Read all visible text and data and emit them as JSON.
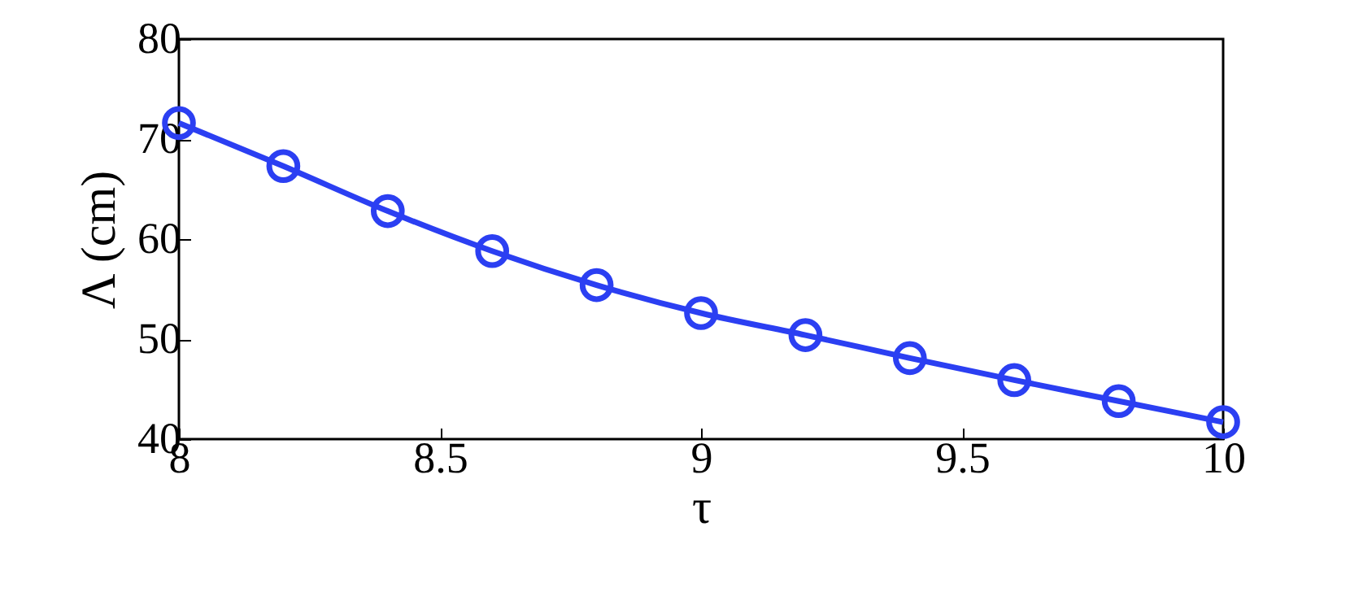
{
  "chart_data": {
    "type": "line",
    "xlabel": "τ",
    "ylabel": "Λ (cm)",
    "x": [
      8,
      8.2,
      8.4,
      8.6,
      8.8,
      9,
      9.2,
      9.4,
      9.6,
      9.8,
      10
    ],
    "series": [
      {
        "color": "#2b3ff2",
        "values": [
          71.6,
          67.3,
          62.8,
          58.8,
          55.4,
          52.6,
          50.4,
          48.1,
          45.9,
          43.8,
          41.7
        ]
      }
    ],
    "xlim": [
      8,
      10
    ],
    "xticks": [
      8,
      8.5,
      9,
      9.5,
      10
    ],
    "ylim": [
      40,
      80
    ],
    "yticks": [
      40,
      50,
      60,
      70,
      80
    ],
    "marker": "circle",
    "line_style": "solid",
    "grid": false,
    "legend": false
  }
}
